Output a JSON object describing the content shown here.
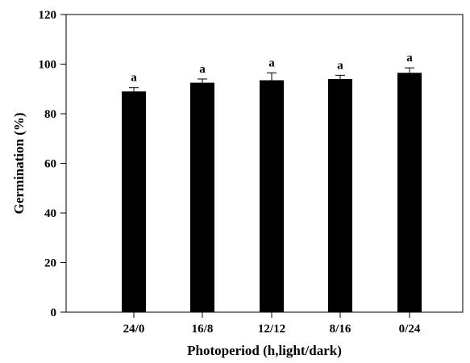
{
  "chart_data": {
    "type": "bar",
    "title": "",
    "xlabel": "Photoperiod (h,light/dark)",
    "ylabel": "Germination (%)",
    "categories": [
      "24/0",
      "16/8",
      "12/12",
      "8/16",
      "0/24"
    ],
    "series": [
      {
        "values": [
          89,
          92.5,
          93.5,
          94,
          96.5
        ],
        "errors": [
          1.5,
          1.5,
          3,
          1.5,
          2
        ],
        "labels": [
          "a",
          "a",
          "a",
          "a",
          "a"
        ]
      }
    ],
    "ylim": [
      0,
      120
    ],
    "yticks": [
      0,
      20,
      40,
      60,
      80,
      100,
      120
    ],
    "grid": false,
    "legend": "none",
    "bar_color": "#000000",
    "axis_color": "#000000",
    "background": "#ffffff"
  }
}
